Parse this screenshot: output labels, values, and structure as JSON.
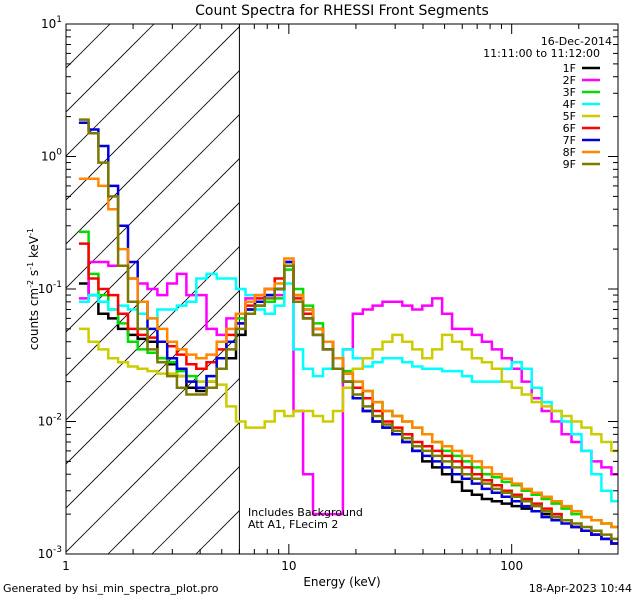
{
  "chart_data": {
    "type": "line",
    "title": "Count Spectra for RHESSI Front Segments",
    "xlabel": "Energy (keV)",
    "ylabel_parts": {
      "a": "counts cm",
      "b": "-2",
      "c": " s",
      "d": "-1",
      "e": " keV",
      "f": "-1"
    },
    "xscale": "log",
    "yscale": "log",
    "xlim": [
      1,
      300
    ],
    "ylim": [
      0.001,
      10
    ],
    "x_ticks": [
      {
        "value": 1,
        "label": "1"
      },
      {
        "value": 10,
        "label": "10"
      },
      {
        "value": 100,
        "label": "100"
      }
    ],
    "y_ticks": [
      {
        "value": 0.001,
        "base": "10",
        "exp": "-3"
      },
      {
        "value": 0.01,
        "base": "10",
        "exp": "-2"
      },
      {
        "value": 0.1,
        "base": "10",
        "exp": "-1"
      },
      {
        "value": 1,
        "base": "10",
        "exp": "0"
      },
      {
        "value": 10,
        "base": "10",
        "exp": "1"
      }
    ],
    "excluded_region": {
      "from": 1,
      "to": 6,
      "style": "hatched"
    },
    "date": "16-Dec-2014",
    "time_range": "11:11:00 to 11:12:00",
    "annotation_lines": [
      "Includes Background",
      "Att A1, FLecim 2"
    ],
    "energy_bins_keV": [
      1.2,
      1.33,
      1.47,
      1.63,
      1.8,
      2.0,
      2.2,
      2.45,
      2.7,
      3.0,
      3.3,
      3.65,
      4.05,
      4.5,
      5.0,
      5.5,
      6.1,
      6.7,
      7.4,
      8.2,
      9.1,
      10.0,
      11.0,
      12.2,
      13.5,
      15.0,
      16.6,
      18.4,
      20.4,
      22.6,
      25.0,
      27.7,
      30.7,
      34.0,
      37.7,
      41.8,
      46.3,
      51.3,
      56.9,
      63.0,
      69.8,
      77.4,
      85.8,
      95.1,
      105.4,
      116.8,
      129.5,
      143.5,
      159.1,
      176.3,
      195.4,
      216.6,
      240.0,
      266.0,
      295.0
    ],
    "series": [
      {
        "name": "1F",
        "color": "#000000",
        "values": [
          0.11,
          0.09,
          0.065,
          0.06,
          0.05,
          0.045,
          0.042,
          0.04,
          0.03,
          0.027,
          0.022,
          0.018,
          0.017,
          0.02,
          0.025,
          0.03,
          0.045,
          0.07,
          0.08,
          0.09,
          0.1,
          0.16,
          0.09,
          0.07,
          0.05,
          0.04,
          0.03,
          0.02,
          0.015,
          0.012,
          0.01,
          0.009,
          0.008,
          0.007,
          0.006,
          0.005,
          0.0045,
          0.004,
          0.0035,
          0.003,
          0.0028,
          0.0026,
          0.0025,
          0.0024,
          0.0023,
          0.0022,
          0.0021,
          0.002,
          0.0019,
          0.0018,
          0.0016,
          0.0015,
          0.0014,
          0.0013,
          0.0012
        ]
      },
      {
        "name": "2F",
        "color": "#ff00ff",
        "values": [
          0.085,
          0.16,
          0.16,
          0.15,
          0.15,
          0.12,
          0.11,
          0.1,
          0.09,
          0.11,
          0.13,
          0.09,
          0.09,
          0.05,
          0.045,
          0.06,
          0.065,
          0.085,
          0.09,
          0.1,
          0.09,
          0.15,
          0.012,
          0.004,
          0.002,
          0.002,
          0.002,
          0.035,
          0.065,
          0.07,
          0.075,
          0.08,
          0.08,
          0.075,
          0.07,
          0.075,
          0.085,
          0.065,
          0.05,
          0.05,
          0.045,
          0.04,
          0.035,
          0.03,
          0.025,
          0.02,
          0.015,
          0.012,
          0.01,
          0.008,
          0.007,
          0.006,
          0.005,
          0.0045,
          0.004
        ]
      },
      {
        "name": "3F",
        "color": "#00dd00",
        "values": [
          0.27,
          0.13,
          0.09,
          0.07,
          0.055,
          0.04,
          0.035,
          0.033,
          0.03,
          0.028,
          0.024,
          0.022,
          0.02,
          0.022,
          0.03,
          0.04,
          0.06,
          0.07,
          0.075,
          0.08,
          0.085,
          0.14,
          0.1,
          0.075,
          0.055,
          0.04,
          0.03,
          0.024,
          0.02,
          0.017,
          0.014,
          0.012,
          0.011,
          0.01,
          0.009,
          0.008,
          0.007,
          0.006,
          0.0055,
          0.005,
          0.0045,
          0.004,
          0.0038,
          0.0035,
          0.0033,
          0.003,
          0.0028,
          0.0026,
          0.0024,
          0.0022,
          0.002,
          0.0019,
          0.0018,
          0.0017,
          0.0016
        ]
      },
      {
        "name": "4F",
        "color": "#00ffff",
        "values": [
          0.08,
          0.09,
          0.08,
          0.07,
          0.075,
          0.07,
          0.065,
          0.06,
          0.07,
          0.07,
          0.075,
          0.08,
          0.12,
          0.13,
          0.12,
          0.12,
          0.1,
          0.09,
          0.07,
          0.065,
          0.075,
          0.11,
          0.035,
          0.025,
          0.022,
          0.025,
          0.03,
          0.035,
          0.03,
          0.026,
          0.028,
          0.03,
          0.03,
          0.028,
          0.026,
          0.025,
          0.025,
          0.024,
          0.024,
          0.022,
          0.02,
          0.02,
          0.02,
          0.025,
          0.028,
          0.025,
          0.018,
          0.014,
          0.012,
          0.01,
          0.008,
          0.006,
          0.004,
          0.003,
          0.0025
        ]
      },
      {
        "name": "5F",
        "color": "#cccc00",
        "values": [
          0.05,
          0.04,
          0.035,
          0.03,
          0.028,
          0.026,
          0.025,
          0.024,
          0.023,
          0.023,
          0.022,
          0.02,
          0.02,
          0.02,
          0.019,
          0.013,
          0.01,
          0.009,
          0.009,
          0.01,
          0.012,
          0.011,
          0.012,
          0.012,
          0.011,
          0.01,
          0.012,
          0.018,
          0.025,
          0.03,
          0.035,
          0.04,
          0.045,
          0.04,
          0.035,
          0.03,
          0.035,
          0.045,
          0.04,
          0.035,
          0.03,
          0.028,
          0.025,
          0.02,
          0.018,
          0.016,
          0.014,
          0.013,
          0.012,
          0.011,
          0.01,
          0.009,
          0.008,
          0.007,
          0.006
        ]
      },
      {
        "name": "6F",
        "color": "#ff0000",
        "values": [
          0.22,
          0.12,
          0.1,
          0.09,
          0.065,
          0.05,
          0.045,
          0.043,
          0.04,
          0.037,
          0.032,
          0.027,
          0.025,
          0.028,
          0.035,
          0.045,
          0.055,
          0.075,
          0.085,
          0.1,
          0.12,
          0.15,
          0.085,
          0.065,
          0.05,
          0.04,
          0.03,
          0.023,
          0.018,
          0.015,
          0.012,
          0.01,
          0.009,
          0.008,
          0.007,
          0.0065,
          0.006,
          0.0055,
          0.005,
          0.0045,
          0.004,
          0.0036,
          0.0033,
          0.003,
          0.0028,
          0.0026,
          0.0024,
          0.0022,
          0.002,
          0.0018,
          0.0016,
          0.0015,
          0.0014,
          0.0013,
          0.0012
        ]
      },
      {
        "name": "7F",
        "color": "#0000dd",
        "values": [
          1.8,
          1.6,
          1.2,
          0.6,
          0.3,
          0.16,
          0.08,
          0.05,
          0.04,
          0.03,
          0.025,
          0.02,
          0.018,
          0.022,
          0.03,
          0.04,
          0.055,
          0.07,
          0.08,
          0.09,
          0.1,
          0.16,
          0.08,
          0.06,
          0.045,
          0.035,
          0.025,
          0.02,
          0.015,
          0.012,
          0.01,
          0.009,
          0.008,
          0.007,
          0.006,
          0.0055,
          0.005,
          0.0045,
          0.004,
          0.0037,
          0.0034,
          0.0031,
          0.0029,
          0.0027,
          0.0025,
          0.0023,
          0.0021,
          0.0019,
          0.0018,
          0.0017,
          0.0016,
          0.0015,
          0.0014,
          0.0013,
          0.0012
        ]
      },
      {
        "name": "8F",
        "color": "#ff8800",
        "values": [
          0.68,
          0.68,
          0.6,
          0.4,
          0.2,
          0.12,
          0.08,
          0.06,
          0.05,
          0.04,
          0.035,
          0.032,
          0.03,
          0.032,
          0.04,
          0.05,
          0.065,
          0.08,
          0.09,
          0.1,
          0.11,
          0.17,
          0.09,
          0.07,
          0.05,
          0.04,
          0.03,
          0.023,
          0.02,
          0.017,
          0.014,
          0.012,
          0.011,
          0.01,
          0.009,
          0.008,
          0.007,
          0.0065,
          0.006,
          0.0055,
          0.005,
          0.0045,
          0.004,
          0.0037,
          0.0034,
          0.0031,
          0.0029,
          0.0027,
          0.0025,
          0.0023,
          0.0021,
          0.0019,
          0.0018,
          0.0017,
          0.0016
        ]
      },
      {
        "name": "9F",
        "color": "#7a7a00",
        "values": [
          1.9,
          1.5,
          0.9,
          0.5,
          0.15,
          0.08,
          0.05,
          0.035,
          0.028,
          0.022,
          0.018,
          0.016,
          0.016,
          0.018,
          0.025,
          0.035,
          0.05,
          0.065,
          0.075,
          0.085,
          0.1,
          0.15,
          0.08,
          0.06,
          0.045,
          0.035,
          0.025,
          0.02,
          0.016,
          0.013,
          0.011,
          0.0095,
          0.0085,
          0.0075,
          0.0065,
          0.006,
          0.0055,
          0.005,
          0.0045,
          0.004,
          0.0037,
          0.0034,
          0.0031,
          0.0029,
          0.0027,
          0.0025,
          0.0023,
          0.0021,
          0.0019,
          0.0018,
          0.0017,
          0.0016,
          0.0015,
          0.0014,
          0.0013
        ]
      }
    ]
  },
  "footer": {
    "generated_by": "Generated by hsi_min_spectra_plot.pro",
    "timestamp": "18-Apr-2023 10:44"
  }
}
